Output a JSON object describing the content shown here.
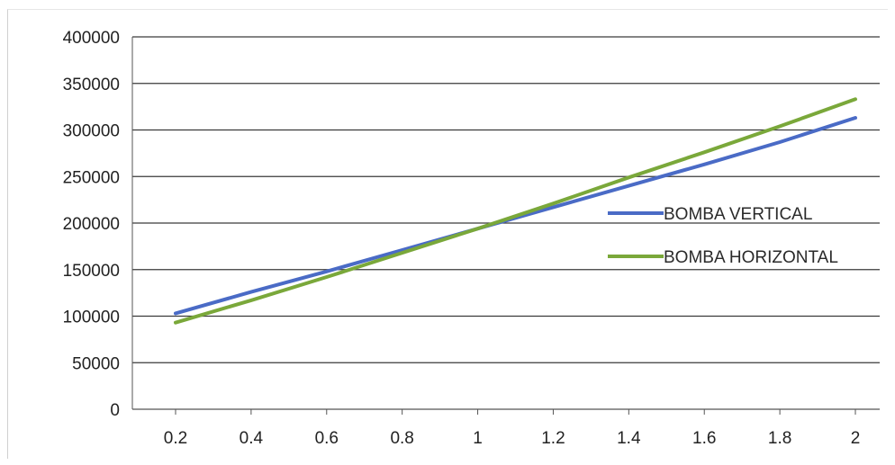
{
  "chart_data": {
    "type": "line",
    "title": "",
    "xlabel": "",
    "ylabel": "",
    "x": [
      0.2,
      0.4,
      0.6,
      0.8,
      1,
      1.2,
      1.4,
      1.6,
      1.8,
      2
    ],
    "x_tick_labels": [
      "0.2",
      "0.4",
      "0.6",
      "0.8",
      "1",
      "1.2",
      "1.4",
      "1.6",
      "1.8",
      "2"
    ],
    "y_tick_labels": [
      "0",
      "50000",
      "100000",
      "150000",
      "200000",
      "250000",
      "300000",
      "350000",
      "400000"
    ],
    "ylim": [
      0,
      400000
    ],
    "grid": true,
    "legend_position": "right",
    "series": [
      {
        "name": "BOMBA VERTICAL",
        "color": "#4a6bc6",
        "values": [
          103000,
          126000,
          148000,
          171000,
          194000,
          217000,
          240000,
          263000,
          287000,
          313000
        ]
      },
      {
        "name": "BOMBA HORIZONTAL",
        "color": "#7aa83a",
        "values": [
          93000,
          117000,
          142000,
          168000,
          194000,
          221000,
          249000,
          276000,
          304000,
          333000
        ]
      }
    ]
  }
}
